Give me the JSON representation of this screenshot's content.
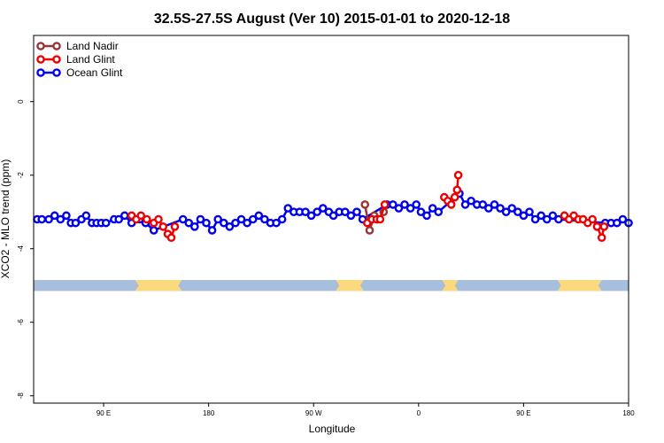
{
  "chart_data": {
    "type": "line",
    "title": "32.5S-27.5S August (Ver 10)   2015-01-01 to 2020-12-18",
    "xlabel": "Longitude",
    "ylabel": "XCO2 - MLO trend (ppm)",
    "xlim": [
      30,
      540
    ],
    "ylim": [
      -8.2,
      1.8
    ],
    "x_ticks": [
      {
        "value": 90,
        "label": "90 E"
      },
      {
        "value": 180,
        "label": "180"
      },
      {
        "value": 270,
        "label": "90 W"
      },
      {
        "value": 360,
        "label": "0"
      },
      {
        "value": 450,
        "label": "90 E"
      },
      {
        "value": 540,
        "label": "180"
      }
    ],
    "y_ticks": [
      {
        "value": 0,
        "label": "0"
      },
      {
        "value": -2,
        "label": "-2"
      },
      {
        "value": -4,
        "label": "-4"
      },
      {
        "value": -6,
        "label": "-6"
      },
      {
        "value": -8,
        "label": "-8"
      }
    ],
    "legend_position": "top-left",
    "band": {
      "y_range": [
        -5.15,
        -4.85
      ],
      "ocean_color": "#a8bedd",
      "land_color": "#fbd97e",
      "land_segments": [
        [
          117,
          157
        ],
        [
          289,
          313
        ],
        [
          380,
          394
        ],
        [
          479,
          517
        ]
      ]
    },
    "series": [
      {
        "name": "Land Nadir",
        "color": "#9b3333",
        "x": [
          314,
          318,
          322,
          325,
          330
        ],
        "y": [
          -2.8,
          -3.5,
          -3.1,
          -3.2,
          -3.0
        ]
      },
      {
        "name": "Land Glint",
        "color": "#ee0000",
        "segments": [
          {
            "x": [
              114,
              118,
              122,
              127,
              133,
              137,
              141,
              145,
              148,
              151
            ],
            "y": [
              -3.1,
              -3.2,
              -3.1,
              -3.2,
              -3.3,
              -3.2,
              -3.4,
              -3.6,
              -3.7,
              -3.4
            ]
          },
          {
            "x": [
              316,
              320,
              324,
              327,
              331
            ],
            "y": [
              -3.3,
              -3.2,
              -3.2,
              -3.2,
              -2.8
            ]
          },
          {
            "x": [
              382,
              385,
              388,
              391,
              393,
              394
            ],
            "y": [
              -2.6,
              -2.7,
              -2.8,
              -2.6,
              -2.4,
              -2.0
            ]
          },
          {
            "x": [
              485,
              489,
              493,
              497,
              501,
              505,
              509,
              513,
              517,
              519
            ],
            "y": [
              -3.1,
              -3.2,
              -3.1,
              -3.2,
              -3.2,
              -3.3,
              -3.2,
              -3.4,
              -3.7,
              -3.4
            ]
          }
        ]
      },
      {
        "name": "Ocean Glint",
        "color": "#0000ee",
        "x": [
          33,
          37,
          43,
          48,
          53,
          58,
          62,
          66,
          71,
          75,
          80,
          84,
          88,
          92,
          99,
          103,
          108,
          114,
          121,
          126,
          133,
          158,
          163,
          168,
          173,
          178,
          183,
          188,
          193,
          198,
          203,
          208,
          213,
          218,
          223,
          228,
          233,
          238,
          243,
          248,
          253,
          258,
          263,
          268,
          273,
          278,
          283,
          287,
          292,
          297,
          302,
          307,
          312,
          333,
          338,
          343,
          348,
          353,
          358,
          362,
          367,
          372,
          377,
          395,
          400,
          405,
          410,
          415,
          420,
          425,
          430,
          435,
          440,
          445,
          450,
          455,
          460,
          465,
          470,
          475,
          480,
          520,
          525,
          530,
          535,
          540
        ],
        "y": [
          -3.2,
          -3.2,
          -3.2,
          -3.1,
          -3.2,
          -3.1,
          -3.3,
          -3.3,
          -3.2,
          -3.1,
          -3.3,
          -3.3,
          -3.3,
          -3.3,
          -3.2,
          -3.2,
          -3.1,
          -3.3,
          -3.2,
          -3.3,
          -3.5,
          -3.2,
          -3.3,
          -3.4,
          -3.2,
          -3.3,
          -3.5,
          -3.2,
          -3.3,
          -3.4,
          -3.3,
          -3.2,
          -3.3,
          -3.2,
          -3.1,
          -3.2,
          -3.3,
          -3.3,
          -3.2,
          -2.9,
          -3.0,
          -3.0,
          -3.0,
          -3.1,
          -3.0,
          -2.9,
          -3.0,
          -3.1,
          -3.0,
          -3.0,
          -3.1,
          -3.0,
          -3.2,
          -2.8,
          -2.8,
          -2.9,
          -2.8,
          -2.9,
          -2.8,
          -3.0,
          -3.1,
          -2.9,
          -3.0,
          -2.5,
          -2.8,
          -2.7,
          -2.8,
          -2.8,
          -2.9,
          -2.8,
          -2.9,
          -3.0,
          -2.9,
          -3.0,
          -3.1,
          -3.0,
          -3.2,
          -3.1,
          -3.2,
          -3.1,
          -3.2,
          -3.3,
          -3.3,
          -3.3,
          -3.2,
          -3.3
        ]
      }
    ]
  }
}
